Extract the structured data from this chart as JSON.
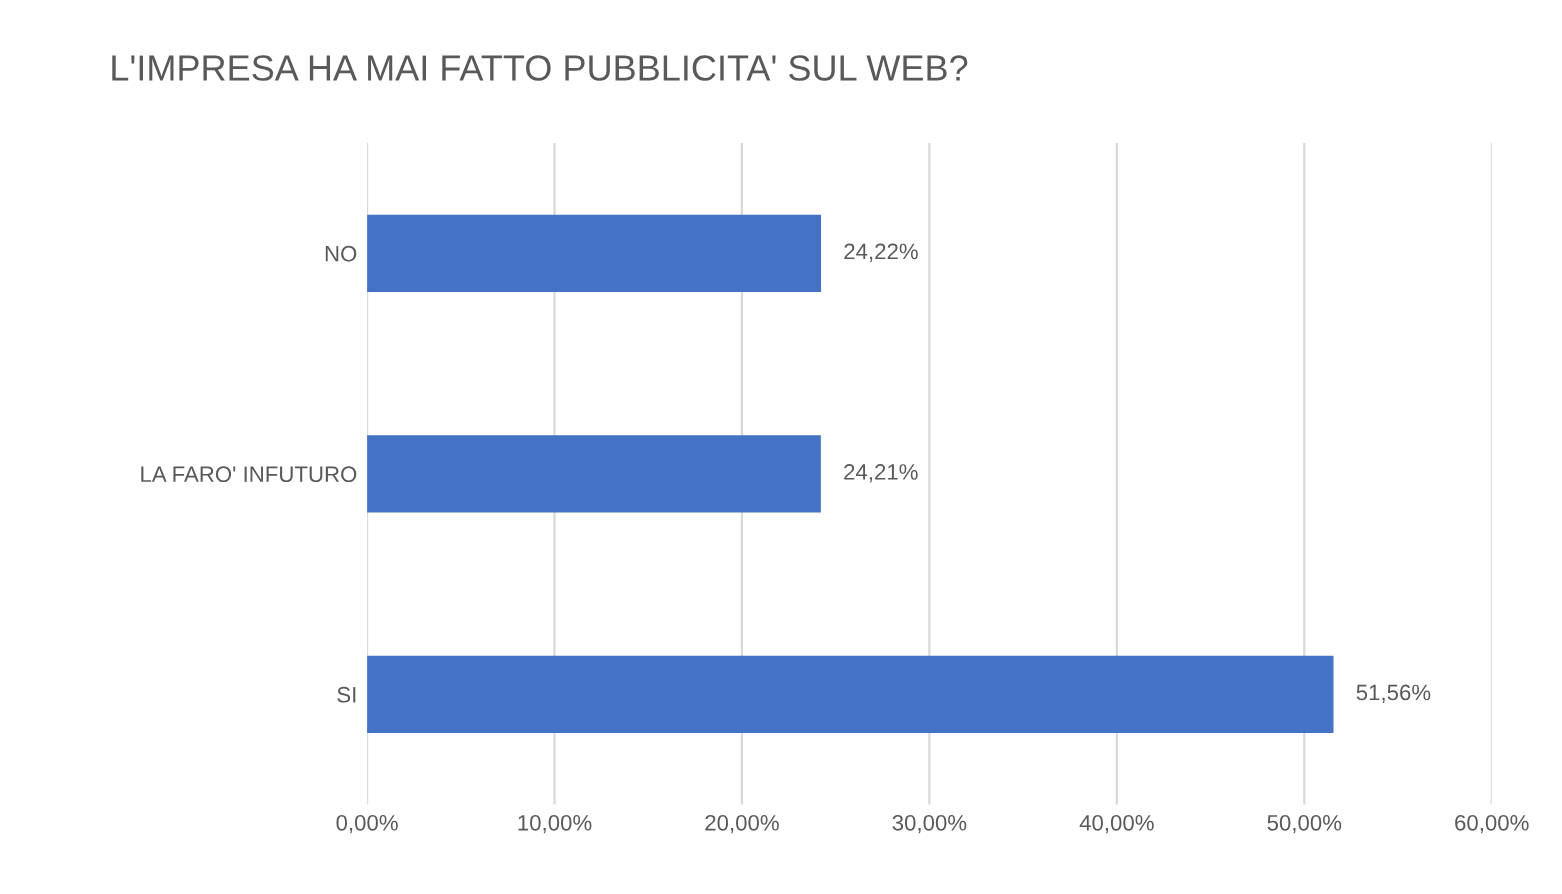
{
  "chart_data": {
    "type": "bar",
    "orientation": "horizontal",
    "title": "L'IMPRESA HA MAI FATTO PUBBLICITA' SUL WEB?",
    "categories": [
      "NO",
      "LA FARO' INFUTURO",
      "SI"
    ],
    "values": [
      24.22,
      24.21,
      51.56
    ],
    "value_labels": [
      "24,22%",
      "24,21%",
      "51,56%"
    ],
    "color": "#4472c4",
    "xlim": [
      0,
      60
    ],
    "xticks": [
      {
        "value": 0,
        "label": "0,00%"
      },
      {
        "value": 10,
        "label": "10,00%"
      },
      {
        "value": 20,
        "label": "20,00%"
      },
      {
        "value": 30,
        "label": "30,00%"
      },
      {
        "value": 40,
        "label": "40,00%"
      },
      {
        "value": 50,
        "label": "50,00%"
      },
      {
        "value": 60,
        "label": "60,00%"
      }
    ],
    "grid": "x"
  }
}
